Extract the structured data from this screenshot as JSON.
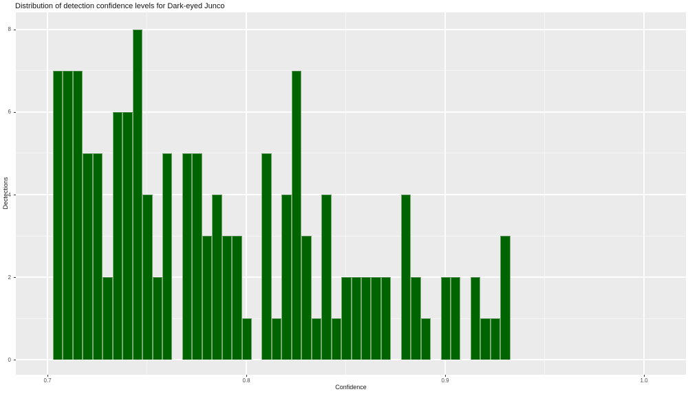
{
  "title": "Distribution of detection confidence levels for Dark-eyed Junco",
  "chart_data": {
    "type": "bar",
    "subtype": "histogram",
    "title": "Distribution of detection confidence levels for Dark-eyed Junco",
    "xlabel": "Confidence",
    "ylabel": "Dectections",
    "xlim": [
      0.684,
      1.021
    ],
    "ylim": [
      0,
      8
    ],
    "grid": "on",
    "legend": "none",
    "bin_width": 0.005,
    "bin_centers": [
      0.705,
      0.71,
      0.715,
      0.72,
      0.725,
      0.73,
      0.735,
      0.74,
      0.745,
      0.75,
      0.755,
      0.76,
      0.765,
      0.77,
      0.775,
      0.78,
      0.785,
      0.79,
      0.795,
      0.8,
      0.805,
      0.81,
      0.815,
      0.82,
      0.825,
      0.83,
      0.835,
      0.84,
      0.845,
      0.85,
      0.855,
      0.86,
      0.865,
      0.87,
      0.875,
      0.88,
      0.885,
      0.89,
      0.895,
      0.9,
      0.905,
      0.91,
      0.915,
      0.92,
      0.925,
      0.93
    ],
    "counts": [
      7,
      7,
      7,
      5,
      5,
      2,
      6,
      6,
      8,
      4,
      2,
      5,
      0,
      5,
      5,
      3,
      4,
      3,
      3,
      1,
      0,
      5,
      1,
      4,
      7,
      3,
      1,
      4,
      1,
      2,
      2,
      2,
      2,
      2,
      0,
      4,
      2,
      1,
      0,
      2,
      2,
      0,
      2,
      1,
      1,
      3
    ],
    "x_ticks": [
      0.7,
      0.8,
      0.9,
      1.0
    ],
    "x_tick_labels": [
      "0.7",
      "0.8",
      "0.9",
      "1.0"
    ],
    "x_minor": [
      0.75,
      0.85,
      0.95
    ],
    "y_ticks": [
      0,
      2,
      4,
      6,
      8
    ],
    "y_tick_labels": [
      "0",
      "2",
      "4",
      "6",
      "8"
    ],
    "y_minor": [
      1,
      3,
      5,
      7
    ],
    "colors": {
      "bar_fill": "#006400",
      "bar_edge": "#77aa72",
      "panel_bg": "#ebebeb",
      "grid_major": "#ffffff",
      "grid_minor": "#f7f7f7",
      "tick_label": "#4d4d4d",
      "text": "#1a1a1a"
    }
  }
}
